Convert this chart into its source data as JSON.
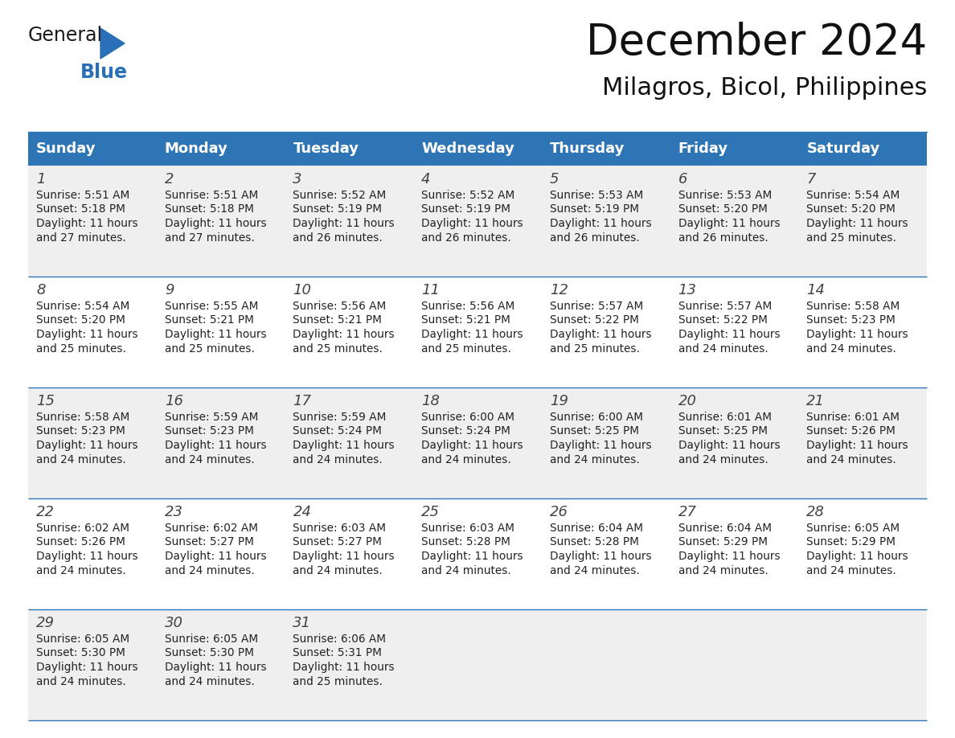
{
  "title": "December 2024",
  "subtitle": "Milagros, Bicol, Philippines",
  "header_bg": "#2E75B6",
  "header_text_color": "#FFFFFF",
  "day_names": [
    "Sunday",
    "Monday",
    "Tuesday",
    "Wednesday",
    "Thursday",
    "Friday",
    "Saturday"
  ],
  "row_bg_even": "#EFEFEF",
  "row_bg_odd": "#FFFFFF",
  "cell_text_color": "#222222",
  "divider_color": "#2E75B6",
  "weeks": [
    [
      {
        "day": 1,
        "sunrise": "5:51 AM",
        "sunset": "5:18 PM",
        "daylight": "11 hours and 27 minutes"
      },
      {
        "day": 2,
        "sunrise": "5:51 AM",
        "sunset": "5:18 PM",
        "daylight": "11 hours and 27 minutes"
      },
      {
        "day": 3,
        "sunrise": "5:52 AM",
        "sunset": "5:19 PM",
        "daylight": "11 hours and 26 minutes"
      },
      {
        "day": 4,
        "sunrise": "5:52 AM",
        "sunset": "5:19 PM",
        "daylight": "11 hours and 26 minutes"
      },
      {
        "day": 5,
        "sunrise": "5:53 AM",
        "sunset": "5:19 PM",
        "daylight": "11 hours and 26 minutes"
      },
      {
        "day": 6,
        "sunrise": "5:53 AM",
        "sunset": "5:20 PM",
        "daylight": "11 hours and 26 minutes"
      },
      {
        "day": 7,
        "sunrise": "5:54 AM",
        "sunset": "5:20 PM",
        "daylight": "11 hours and 25 minutes"
      }
    ],
    [
      {
        "day": 8,
        "sunrise": "5:54 AM",
        "sunset": "5:20 PM",
        "daylight": "11 hours and 25 minutes"
      },
      {
        "day": 9,
        "sunrise": "5:55 AM",
        "sunset": "5:21 PM",
        "daylight": "11 hours and 25 minutes"
      },
      {
        "day": 10,
        "sunrise": "5:56 AM",
        "sunset": "5:21 PM",
        "daylight": "11 hours and 25 minutes"
      },
      {
        "day": 11,
        "sunrise": "5:56 AM",
        "sunset": "5:21 PM",
        "daylight": "11 hours and 25 minutes"
      },
      {
        "day": 12,
        "sunrise": "5:57 AM",
        "sunset": "5:22 PM",
        "daylight": "11 hours and 25 minutes"
      },
      {
        "day": 13,
        "sunrise": "5:57 AM",
        "sunset": "5:22 PM",
        "daylight": "11 hours and 24 minutes"
      },
      {
        "day": 14,
        "sunrise": "5:58 AM",
        "sunset": "5:23 PM",
        "daylight": "11 hours and 24 minutes"
      }
    ],
    [
      {
        "day": 15,
        "sunrise": "5:58 AM",
        "sunset": "5:23 PM",
        "daylight": "11 hours and 24 minutes"
      },
      {
        "day": 16,
        "sunrise": "5:59 AM",
        "sunset": "5:23 PM",
        "daylight": "11 hours and 24 minutes"
      },
      {
        "day": 17,
        "sunrise": "5:59 AM",
        "sunset": "5:24 PM",
        "daylight": "11 hours and 24 minutes"
      },
      {
        "day": 18,
        "sunrise": "6:00 AM",
        "sunset": "5:24 PM",
        "daylight": "11 hours and 24 minutes"
      },
      {
        "day": 19,
        "sunrise": "6:00 AM",
        "sunset": "5:25 PM",
        "daylight": "11 hours and 24 minutes"
      },
      {
        "day": 20,
        "sunrise": "6:01 AM",
        "sunset": "5:25 PM",
        "daylight": "11 hours and 24 minutes"
      },
      {
        "day": 21,
        "sunrise": "6:01 AM",
        "sunset": "5:26 PM",
        "daylight": "11 hours and 24 minutes"
      }
    ],
    [
      {
        "day": 22,
        "sunrise": "6:02 AM",
        "sunset": "5:26 PM",
        "daylight": "11 hours and 24 minutes"
      },
      {
        "day": 23,
        "sunrise": "6:02 AM",
        "sunset": "5:27 PM",
        "daylight": "11 hours and 24 minutes"
      },
      {
        "day": 24,
        "sunrise": "6:03 AM",
        "sunset": "5:27 PM",
        "daylight": "11 hours and 24 minutes"
      },
      {
        "day": 25,
        "sunrise": "6:03 AM",
        "sunset": "5:28 PM",
        "daylight": "11 hours and 24 minutes"
      },
      {
        "day": 26,
        "sunrise": "6:04 AM",
        "sunset": "5:28 PM",
        "daylight": "11 hours and 24 minutes"
      },
      {
        "day": 27,
        "sunrise": "6:04 AM",
        "sunset": "5:29 PM",
        "daylight": "11 hours and 24 minutes"
      },
      {
        "day": 28,
        "sunrise": "6:05 AM",
        "sunset": "5:29 PM",
        "daylight": "11 hours and 24 minutes"
      }
    ],
    [
      {
        "day": 29,
        "sunrise": "6:05 AM",
        "sunset": "5:30 PM",
        "daylight": "11 hours and 24 minutes"
      },
      {
        "day": 30,
        "sunrise": "6:05 AM",
        "sunset": "5:30 PM",
        "daylight": "11 hours and 24 minutes"
      },
      {
        "day": 31,
        "sunrise": "6:06 AM",
        "sunset": "5:31 PM",
        "daylight": "11 hours and 25 minutes"
      },
      null,
      null,
      null,
      null
    ]
  ],
  "logo_general_color": "#1a1a1a",
  "logo_blue_color": "#2970B8",
  "title_fontsize": 38,
  "subtitle_fontsize": 22,
  "header_fontsize": 13,
  "day_num_fontsize": 13,
  "cell_text_fontsize": 9.8,
  "fig_width": 11.88,
  "fig_height": 9.18,
  "dpi": 100
}
